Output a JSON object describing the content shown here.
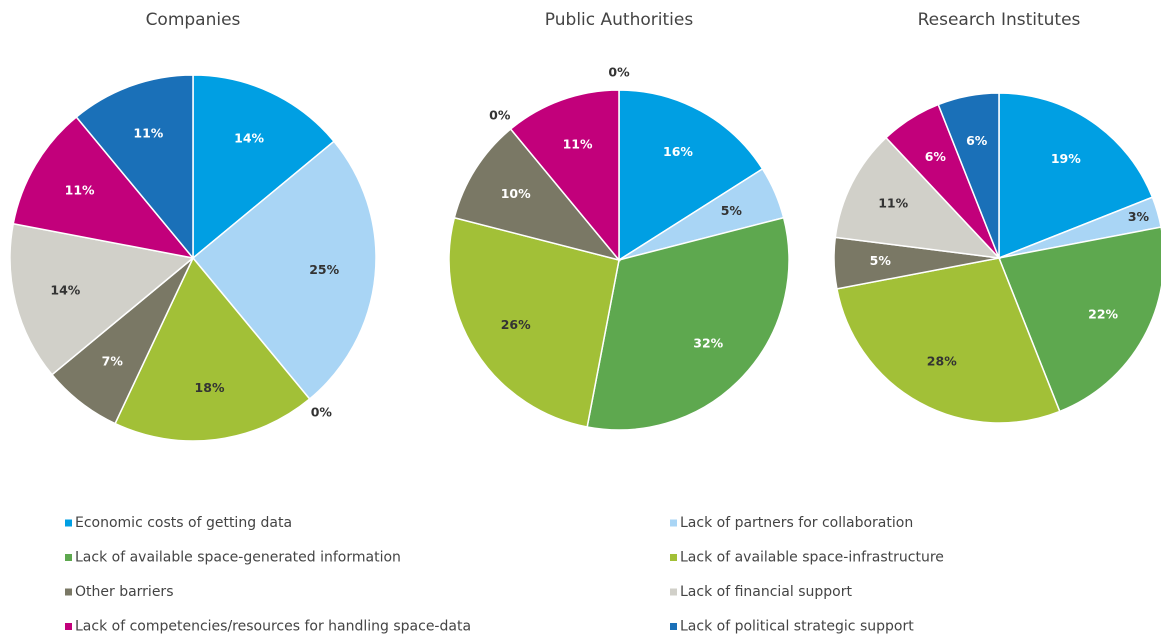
{
  "chart_data": [
    {
      "type": "pie",
      "title": "Companies",
      "values": [
        14,
        25,
        0,
        18,
        7,
        14,
        11,
        11
      ],
      "value_labels": [
        "14%",
        "25%",
        "0%",
        "18%",
        "7%",
        "14%",
        "11%",
        "11%"
      ]
    },
    {
      "type": "pie",
      "title": "Public Authorities",
      "values": [
        16,
        5,
        32,
        26,
        10,
        0,
        11,
        0
      ],
      "value_labels": [
        "16%",
        "5%",
        "32%",
        "26%",
        "10%",
        "0%",
        "11%",
        "0%"
      ]
    },
    {
      "type": "pie",
      "title": "Research Institutes",
      "values": [
        19,
        3,
        22,
        28,
        5,
        11,
        6,
        6
      ],
      "value_labels": [
        "19%",
        "3%",
        "22%",
        "28%",
        "5%",
        "11%",
        "6%",
        "6%"
      ]
    }
  ],
  "legend": {
    "labels": [
      "Economic costs of getting data",
      "Lack of partners for collaboration",
      "Lack of available space-generated information",
      "Lack of available space-infrastructure",
      "Other barriers",
      "Lack of financial support",
      "Lack of competencies/resources for handling space-data",
      "Lack of political strategic support"
    ],
    "colors": [
      "#009fe3",
      "#a9d5f5",
      "#5ea84f",
      "#a2c037",
      "#7a7865",
      "#d1d0c9",
      "#c2007b",
      "#1a70b8"
    ]
  }
}
